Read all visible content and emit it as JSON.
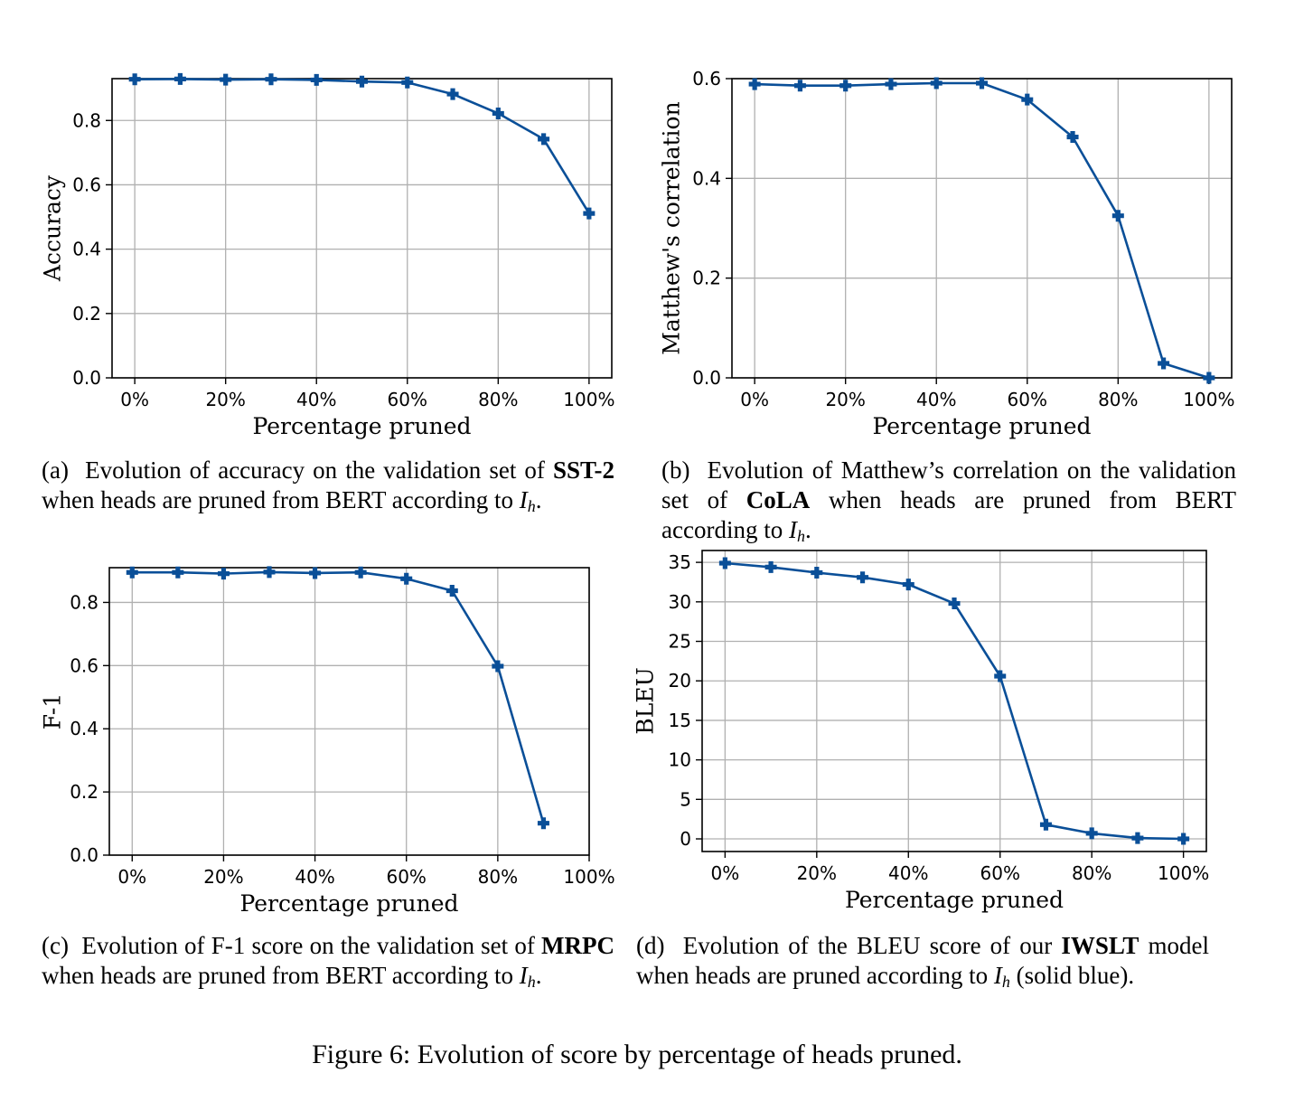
{
  "figure_caption": "Figure 6: Evolution of score by percentage of heads pruned.",
  "captions": [
    {
      "label": "(a)",
      "pre": "Evolution of accuracy on the validation set of",
      "bold": "SST-2",
      "post": "when heads are pruned from BERT according to",
      "math": "I",
      "sub": "h",
      "end": "."
    },
    {
      "label": "(b)",
      "pre": "Evolution of Matthew’s correlation on the validation set of",
      "bold": "CoLA",
      "post": "when heads are pruned from BERT according to",
      "math": "I",
      "sub": "h",
      "end": "."
    },
    {
      "label": "(c)",
      "pre": "Evolution of F-1 score on the validation set of",
      "bold": "MRPC",
      "post": "when heads are pruned from BERT according to",
      "math": "I",
      "sub": "h",
      "end": "."
    },
    {
      "label": "(d)",
      "pre": "Evolution of the BLEU score of our",
      "bold": "IWSLT",
      "post": "model when heads are pruned according to",
      "math": "I",
      "sub": "h",
      "end": "(solid blue)."
    }
  ],
  "chart_data": [
    {
      "type": "line",
      "xlabel": "Percentage pruned",
      "ylabel": "Accuracy",
      "x": [
        0,
        10,
        20,
        30,
        40,
        50,
        60,
        70,
        80,
        90,
        100
      ],
      "xlim": [
        -5,
        105
      ],
      "xticks": [
        0,
        20,
        40,
        60,
        80,
        100
      ],
      "xtick_labels": [
        "0%",
        "20%",
        "40%",
        "60%",
        "80%",
        "100%"
      ],
      "ylim": [
        0,
        0.93
      ],
      "yticks": [
        0,
        0.2,
        0.4,
        0.6,
        0.8
      ],
      "ytick_labels": [
        "0.0",
        "0.2",
        "0.4",
        "0.6",
        "0.8"
      ],
      "grid": true,
      "marker": "plus",
      "color": "#0a4f98",
      "series": [
        {
          "values": [
            0.928,
            0.929,
            0.927,
            0.928,
            0.926,
            0.921,
            0.918,
            0.882,
            0.822,
            0.742,
            0.511
          ]
        }
      ]
    },
    {
      "type": "line",
      "xlabel": "Percentage pruned",
      "ylabel": "Matthew's correlation",
      "x": [
        0,
        10,
        20,
        30,
        40,
        50,
        60,
        70,
        80,
        90,
        100
      ],
      "xlim": [
        -5,
        105
      ],
      "xticks": [
        0,
        20,
        40,
        60,
        80,
        100
      ],
      "xtick_labels": [
        "0%",
        "20%",
        "40%",
        "60%",
        "80%",
        "100%"
      ],
      "ylim": [
        0,
        0.6
      ],
      "yticks": [
        0,
        0.2,
        0.4,
        0.6
      ],
      "ytick_labels": [
        "0.0",
        "0.2",
        "0.4",
        "0.6"
      ],
      "grid": true,
      "marker": "plus",
      "color": "#0a4f98",
      "series": [
        {
          "values": [
            0.589,
            0.586,
            0.586,
            0.589,
            0.591,
            0.591,
            0.558,
            0.483,
            0.325,
            0.029,
            0.0
          ]
        }
      ]
    },
    {
      "type": "line",
      "xlabel": "Percentage pruned",
      "ylabel": "F-1",
      "x": [
        0,
        10,
        20,
        30,
        40,
        50,
        60,
        70,
        80,
        90
      ],
      "xlim": [
        -5,
        100
      ],
      "xticks": [
        0,
        20,
        40,
        60,
        80,
        100
      ],
      "xtick_labels": [
        "0%",
        "20%",
        "40%",
        "60%",
        "80%",
        "100%"
      ],
      "ylim": [
        0,
        0.91
      ],
      "yticks": [
        0,
        0.2,
        0.4,
        0.6,
        0.8
      ],
      "ytick_labels": [
        "0.0",
        "0.2",
        "0.4",
        "0.6",
        "0.8"
      ],
      "grid": true,
      "marker": "plus",
      "color": "#0a4f98",
      "series": [
        {
          "values": [
            0.895,
            0.895,
            0.891,
            0.896,
            0.893,
            0.895,
            0.875,
            0.837,
            0.598,
            0.101
          ]
        }
      ]
    },
    {
      "type": "line",
      "xlabel": "Percentage pruned",
      "ylabel": "BLEU",
      "x": [
        0,
        10,
        20,
        30,
        40,
        50,
        60,
        70,
        80,
        90,
        100
      ],
      "xlim": [
        -5,
        105
      ],
      "xticks": [
        0,
        20,
        40,
        60,
        80,
        100
      ],
      "xtick_labels": [
        "0%",
        "20%",
        "40%",
        "60%",
        "80%",
        "100%"
      ],
      "ylim": [
        -1.6,
        36.5
      ],
      "yticks": [
        0,
        5,
        10,
        15,
        20,
        25,
        30,
        35
      ],
      "ytick_labels": [
        "0",
        "5",
        "10",
        "15",
        "20",
        "25",
        "30",
        "35"
      ],
      "grid": true,
      "marker": "plus",
      "color": "#0a4f98",
      "series": [
        {
          "values": [
            34.9,
            34.4,
            33.7,
            33.1,
            32.2,
            29.8,
            20.6,
            1.8,
            0.7,
            0.1,
            0.0
          ]
        }
      ]
    }
  ]
}
